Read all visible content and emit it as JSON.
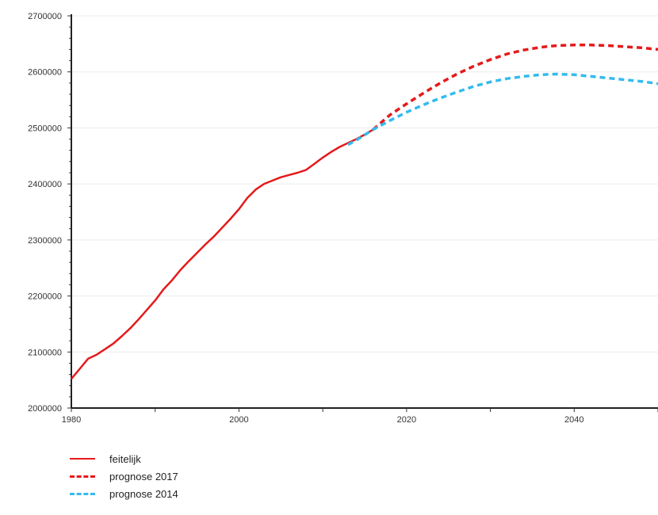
{
  "chart_data": {
    "type": "line",
    "xlim": [
      1980,
      2050
    ],
    "ylim": [
      2000000,
      2700000
    ],
    "x_ticks": [
      1980,
      2000,
      2020,
      2040
    ],
    "y_ticks": [
      2000000,
      2100000,
      2200000,
      2300000,
      2400000,
      2500000,
      2600000,
      2700000
    ],
    "x_tick_labels": [
      "1980",
      "2000",
      "2020",
      "2040"
    ],
    "y_tick_labels": [
      "2000000",
      "2100000",
      "2200000",
      "2300000",
      "2400000",
      "2500000",
      "2600000",
      "2700000"
    ],
    "grid": "horizontal",
    "legend_position": "bottom-left",
    "series": [
      {
        "name": "feitelijk",
        "color": "#e41a1c",
        "style": "solid",
        "points": [
          [
            1980,
            2052000
          ],
          [
            1981,
            2070000
          ],
          [
            1982,
            2088000
          ],
          [
            1983,
            2095000
          ],
          [
            1984,
            2105000
          ],
          [
            1985,
            2115000
          ],
          [
            1986,
            2128000
          ],
          [
            1987,
            2142000
          ],
          [
            1988,
            2158000
          ],
          [
            1989,
            2175000
          ],
          [
            1990,
            2192000
          ],
          [
            1991,
            2212000
          ],
          [
            1992,
            2228000
          ],
          [
            1993,
            2246000
          ],
          [
            1994,
            2262000
          ],
          [
            1995,
            2277000
          ],
          [
            1996,
            2292000
          ],
          [
            1997,
            2306000
          ],
          [
            1998,
            2322000
          ],
          [
            1999,
            2338000
          ],
          [
            2000,
            2355000
          ],
          [
            2001,
            2375000
          ],
          [
            2002,
            2390000
          ],
          [
            2003,
            2400000
          ],
          [
            2004,
            2406000
          ],
          [
            2005,
            2412000
          ],
          [
            2006,
            2416000
          ],
          [
            2007,
            2420000
          ],
          [
            2008,
            2425000
          ],
          [
            2009,
            2436000
          ],
          [
            2010,
            2447000
          ],
          [
            2011,
            2457000
          ],
          [
            2012,
            2466000
          ],
          [
            2013,
            2473000
          ],
          [
            2014,
            2480000
          ],
          [
            2015,
            2488000
          ],
          [
            2016,
            2497000
          ]
        ]
      },
      {
        "name": "prognose 2017",
        "color": "#e41a1c",
        "style": "dashed",
        "points": [
          [
            2016,
            2497000
          ],
          [
            2018,
            2523000
          ],
          [
            2020,
            2543000
          ],
          [
            2022,
            2562000
          ],
          [
            2024,
            2580000
          ],
          [
            2026,
            2596000
          ],
          [
            2028,
            2610000
          ],
          [
            2030,
            2622000
          ],
          [
            2032,
            2632000
          ],
          [
            2034,
            2639000
          ],
          [
            2036,
            2644000
          ],
          [
            2038,
            2647000
          ],
          [
            2040,
            2648000
          ],
          [
            2042,
            2648000
          ],
          [
            2044,
            2647000
          ],
          [
            2046,
            2645000
          ],
          [
            2048,
            2643000
          ],
          [
            2050,
            2640000
          ]
        ]
      },
      {
        "name": "prognose 2014",
        "color": "#33bbee",
        "style": "dashed",
        "points": [
          [
            2013,
            2470000
          ],
          [
            2014,
            2478000
          ],
          [
            2016,
            2497000
          ],
          [
            2018,
            2513000
          ],
          [
            2020,
            2528000
          ],
          [
            2022,
            2541000
          ],
          [
            2024,
            2553000
          ],
          [
            2026,
            2564000
          ],
          [
            2028,
            2574000
          ],
          [
            2030,
            2582000
          ],
          [
            2032,
            2588000
          ],
          [
            2034,
            2592000
          ],
          [
            2036,
            2595000
          ],
          [
            2038,
            2596000
          ],
          [
            2040,
            2595000
          ],
          [
            2042,
            2592000
          ],
          [
            2044,
            2589000
          ],
          [
            2046,
            2586000
          ],
          [
            2048,
            2583000
          ],
          [
            2050,
            2579000
          ]
        ]
      }
    ]
  }
}
